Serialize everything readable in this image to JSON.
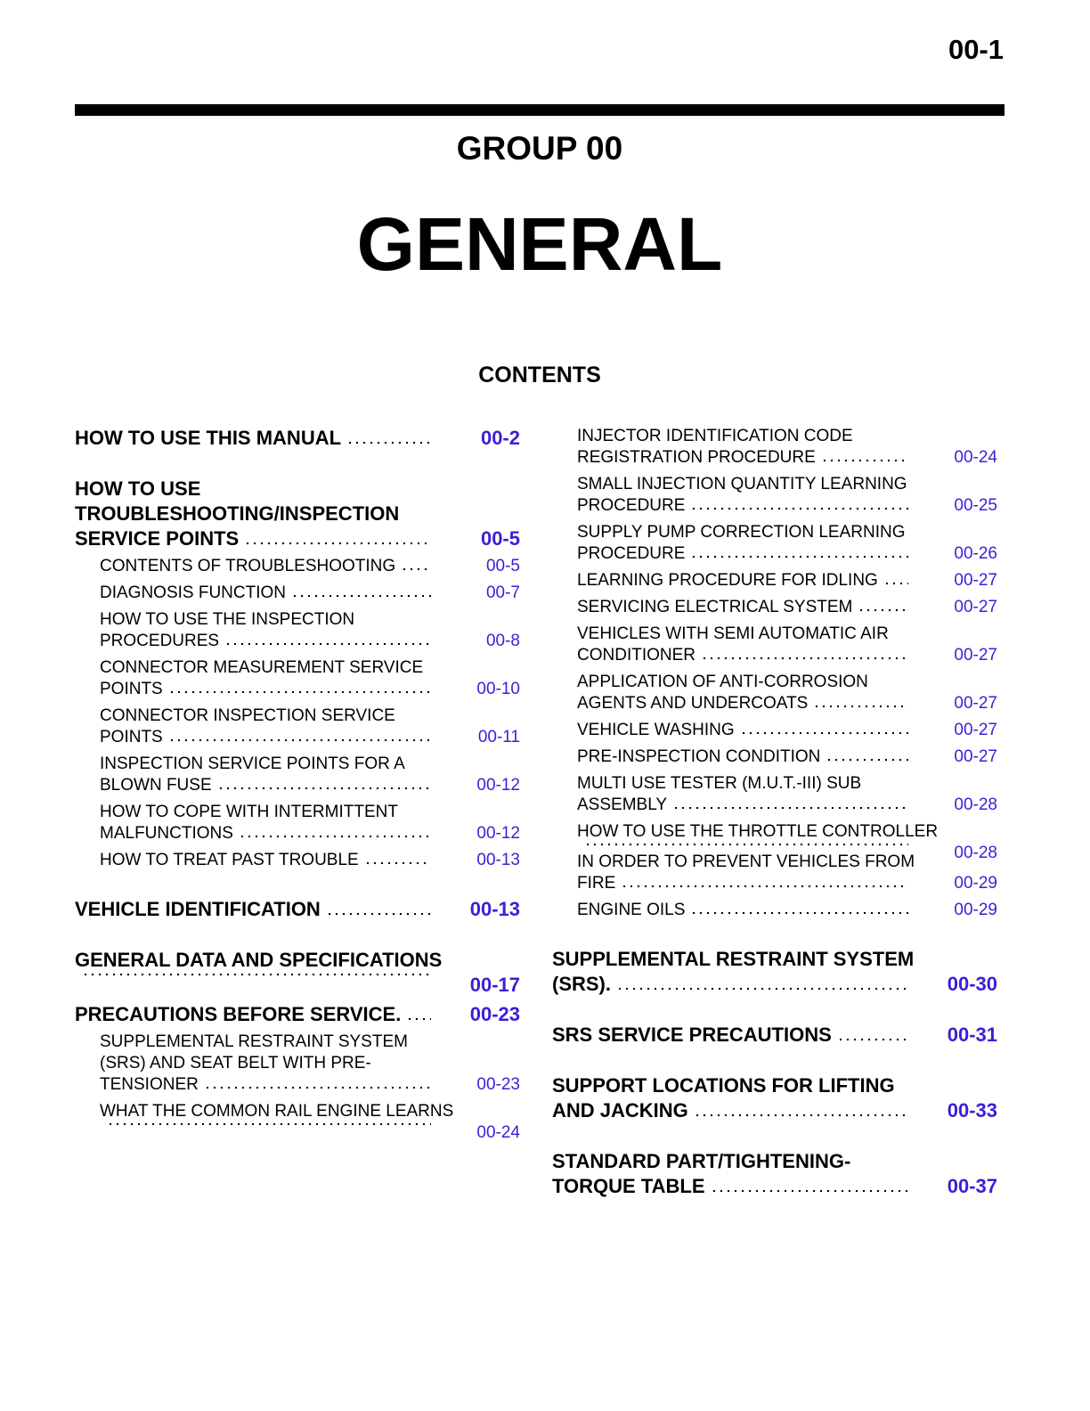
{
  "header": {
    "page_number": "00-1",
    "group": "GROUP 00",
    "title": "GENERAL",
    "contents_heading": "CONTENTS"
  },
  "columns": [
    {
      "entries": [
        {
          "level": 1,
          "lines": [
            "HOW TO USE THIS MANUAL"
          ],
          "page": "00-2"
        },
        {
          "level": 1,
          "lines": [
            "HOW TO USE",
            "TROUBLESHOOTING/INSPECTION",
            "SERVICE POINTS"
          ],
          "page": "00-5"
        },
        {
          "level": 2,
          "lines": [
            "CONTENTS OF TROUBLESHOOTING"
          ],
          "page": "00-5"
        },
        {
          "level": 2,
          "lines": [
            "DIAGNOSIS FUNCTION"
          ],
          "page": "00-7"
        },
        {
          "level": 2,
          "lines": [
            "HOW TO USE THE INSPECTION",
            "PROCEDURES"
          ],
          "page": "00-8"
        },
        {
          "level": 2,
          "lines": [
            "CONNECTOR MEASUREMENT SERVICE",
            "POINTS"
          ],
          "page": "00-10"
        },
        {
          "level": 2,
          "lines": [
            "CONNECTOR INSPECTION SERVICE",
            "POINTS"
          ],
          "page": "00-11"
        },
        {
          "level": 2,
          "lines": [
            "INSPECTION SERVICE POINTS FOR A",
            "BLOWN FUSE"
          ],
          "page": "00-12"
        },
        {
          "level": 2,
          "lines": [
            "HOW TO COPE WITH INTERMITTENT",
            "MALFUNCTIONS"
          ],
          "page": "00-12"
        },
        {
          "level": 2,
          "lines": [
            "HOW TO TREAT PAST TROUBLE"
          ],
          "page": "00-13"
        },
        {
          "level": 1,
          "lines": [
            "VEHICLE IDENTIFICATION"
          ],
          "page": "00-13"
        },
        {
          "level": 1,
          "lines": [
            "GENERAL DATA AND SPECIFICATIONS"
          ],
          "page": "00-17",
          "page_on_new_line": true
        },
        {
          "level": 1,
          "lines": [
            "PRECAUTIONS BEFORE SERVICE."
          ],
          "page": "00-23"
        },
        {
          "level": 2,
          "lines": [
            "SUPPLEMENTAL RESTRAINT SYSTEM",
            "(SRS) AND SEAT BELT WITH PRE-",
            "TENSIONER"
          ],
          "page": "00-23"
        },
        {
          "level": 2,
          "lines": [
            "WHAT THE COMMON RAIL ENGINE LEARNS"
          ],
          "page": "00-24",
          "page_on_new_line": true
        }
      ]
    },
    {
      "entries": [
        {
          "level": 2,
          "lines": [
            "INJECTOR IDENTIFICATION CODE",
            "REGISTRATION PROCEDURE"
          ],
          "page": "00-24"
        },
        {
          "level": 2,
          "lines": [
            "SMALL INJECTION QUANTITY LEARNING",
            "PROCEDURE"
          ],
          "page": "00-25"
        },
        {
          "level": 2,
          "lines": [
            "SUPPLY PUMP CORRECTION LEARNING",
            "PROCEDURE"
          ],
          "page": "00-26"
        },
        {
          "level": 2,
          "lines": [
            "LEARNING PROCEDURE FOR IDLING"
          ],
          "page": "00-27"
        },
        {
          "level": 2,
          "lines": [
            "SERVICING ELECTRICAL SYSTEM"
          ],
          "page": "00-27"
        },
        {
          "level": 2,
          "lines": [
            "VEHICLES WITH SEMI AUTOMATIC AIR",
            "CONDITIONER"
          ],
          "page": "00-27"
        },
        {
          "level": 2,
          "lines": [
            "APPLICATION OF ANTI-CORROSION",
            "AGENTS AND UNDERCOATS"
          ],
          "page": "00-27"
        },
        {
          "level": 2,
          "lines": [
            "VEHICLE WASHING"
          ],
          "page": "00-27"
        },
        {
          "level": 2,
          "lines": [
            "PRE-INSPECTION CONDITION"
          ],
          "page": "00-27"
        },
        {
          "level": 2,
          "lines": [
            "MULTI USE TESTER (M.U.T.-III) SUB",
            "ASSEMBLY"
          ],
          "page": "00-28"
        },
        {
          "level": 2,
          "lines": [
            "HOW TO USE THE THROTTLE CONTROLLER"
          ],
          "page": "00-28",
          "page_on_new_line": true
        },
        {
          "level": 2,
          "lines": [
            "IN ORDER TO PREVENT VEHICLES FROM",
            "FIRE"
          ],
          "page": "00-29"
        },
        {
          "level": 2,
          "lines": [
            "ENGINE OILS"
          ],
          "page": "00-29"
        },
        {
          "level": 1,
          "lines": [
            "SUPPLEMENTAL RESTRAINT SYSTEM",
            "(SRS)."
          ],
          "page": "00-30"
        },
        {
          "level": 1,
          "lines": [
            "SRS SERVICE PRECAUTIONS"
          ],
          "page": "00-31"
        },
        {
          "level": 1,
          "lines": [
            "SUPPORT LOCATIONS FOR LIFTING",
            "AND JACKING"
          ],
          "page": "00-33"
        },
        {
          "level": 1,
          "lines": [
            "STANDARD PART/TIGHTENING-",
            "TORQUE TABLE"
          ],
          "page": "00-37"
        }
      ]
    }
  ]
}
